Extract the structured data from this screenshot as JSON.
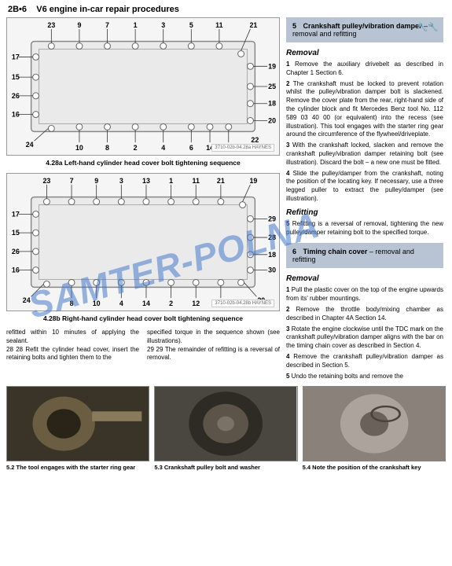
{
  "header": {
    "pageRef": "2B•6",
    "pageTitle": "V6 engine in-car repair procedures"
  },
  "diagrams": {
    "a": {
      "label": "3710-02b-04.28a HAYNES",
      "caption": "4.28a Left-hand cylinder head cover bolt tightening sequence",
      "topNumbers": [
        "23",
        "9",
        "7",
        "1",
        "3",
        "5",
        "11",
        "21"
      ],
      "leftNumbers": [
        "17",
        "15",
        "26",
        "16",
        "24"
      ],
      "rightNumbers": [
        "19",
        "25",
        "18",
        "20",
        "22"
      ],
      "bottomNumbers": [
        "10",
        "8",
        "2",
        "4",
        "6",
        "14",
        "12"
      ]
    },
    "b": {
      "label": "3710-02b-04.28b HAYNES",
      "caption": "4.28b Right-hand cylinder head cover bolt tightening sequence",
      "topNumbers": [
        "23",
        "7",
        "9",
        "3",
        "13",
        "1",
        "11",
        "21",
        "19"
      ],
      "leftNumbers": [
        "17",
        "15",
        "26",
        "16",
        "24"
      ],
      "rightNumbers": [
        "29",
        "28",
        "18",
        "30",
        "20"
      ],
      "bottomNumbers": [
        "8",
        "10",
        "4",
        "14",
        "2",
        "12",
        "22"
      ]
    }
  },
  "leftBody": {
    "colA": [
      "refitted within 10 minutes of applying the sealant.",
      "28 Refit the cylinder head cover, insert the retaining bolts and tighten them to the"
    ],
    "colB": [
      "specified torque in the sequence shown (see illustrations).",
      "29 The remainder of refitting is a reversal of removal."
    ]
  },
  "section5": {
    "num": "5",
    "title": "Crankshaft pulley/vibration damper",
    "sub": " – removal and refitting",
    "removalHeading": "Removal",
    "removal": [
      {
        "n": "1",
        "t": "Remove the auxiliary drivebelt as described in Chapter 1 Section 6."
      },
      {
        "n": "2",
        "t": "The crankshaft must be locked to prevent rotation whilst the pulley/vibration damper bolt is slackened. Remove the cover plate from the rear, right-hand side of the cylinder block and fit Mercedes Benz tool No. 112 589 03 40 00 (or equivalent) into the recess (see illustration). This tool engages with the starter ring gear around the circumference of the flywheel/driveplate."
      },
      {
        "n": "3",
        "t": "With the crankshaft locked, slacken and remove the crankshaft pulley/vibration damper retaining bolt (see illustration). Discard the bolt – a new one must be fitted."
      },
      {
        "n": "4",
        "t": "Slide the pulley/damper from the crankshaft, noting the position of the locating key. If necessary, use a three legged puller to extract the pulley/damper (see illustration)."
      }
    ],
    "refittingHeading": "Refitting",
    "refitting": [
      {
        "n": "5",
        "t": "Refitting is a reversal of removal, tightening the new pulley/damper retaining bolt to the specified torque."
      }
    ]
  },
  "section6": {
    "num": "6",
    "title": "Timing chain cover",
    "sub": " – removal and refitting",
    "removalHeading": "Removal",
    "removal": [
      {
        "n": "1",
        "t": "Pull the plastic cover on the top of the engine upwards from its' rubber mountings."
      },
      {
        "n": "2",
        "t": "Remove the throttle body/mixing chamber as described in Chapter 4A Section 14."
      },
      {
        "n": "3",
        "t": "Rotate the engine clockwise until the TDC mark on the crankshaft pulley/vibration damper aligns with the bar on the timing chain cover as described in Section 4."
      },
      {
        "n": "4",
        "t": "Remove the crankshaft pulley/vibration damper as described in Section 5."
      },
      {
        "n": "5",
        "t": "Undo the retaining bolts and remove the"
      }
    ]
  },
  "photos": [
    {
      "caption": "5.2 The tool engages with the starter ring gear",
      "colors": {
        "bg": "#3a3428",
        "c1": "#6b5d42",
        "c2": "#8a7a5c",
        "c3": "#2a2418"
      }
    },
    {
      "caption": "5.3 Crankshaft pulley bolt and washer",
      "colors": {
        "bg": "#4a4640",
        "c1": "#7a7268",
        "c2": "#2e2a24",
        "c3": "#5c5448"
      }
    },
    {
      "caption": "5.4 Note the position of the crankshaft key",
      "colors": {
        "bg": "#8a827a",
        "c1": "#aca49c",
        "c2": "#6a625a",
        "c3": "#4a4238"
      }
    }
  ],
  "watermark": "SAMTER-POLNA",
  "style": {
    "sectionBg": "#b8c4d4",
    "diagramBg": "#f5f5f5",
    "border": "#999999"
  }
}
